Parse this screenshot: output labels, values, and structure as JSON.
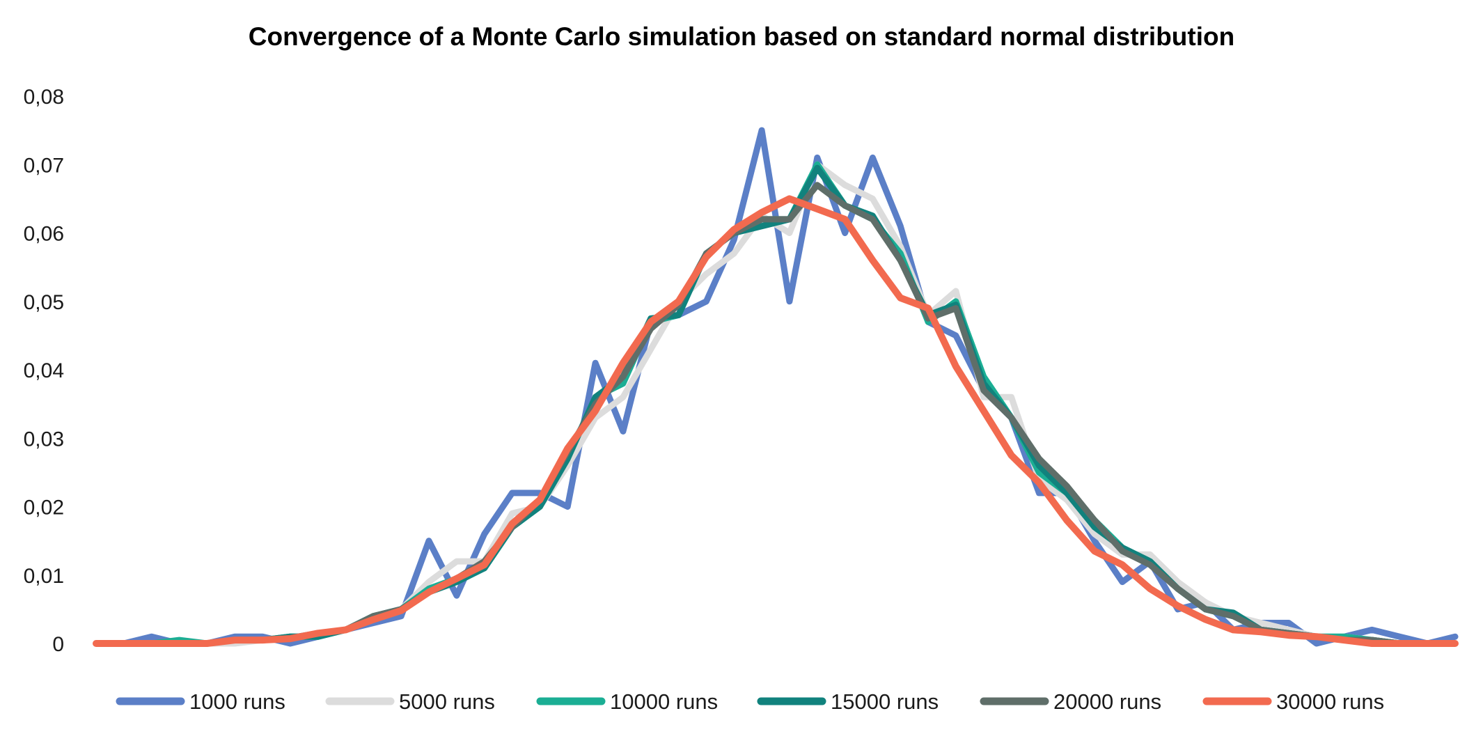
{
  "chart_data": {
    "type": "line",
    "title": "Convergence of a Monte Carlo simulation based on standard normal distribution",
    "xlabel": "",
    "ylabel": "",
    "ylim": [
      0,
      0.08
    ],
    "y_ticks": [
      "0",
      "0,01",
      "0,02",
      "0,03",
      "0,04",
      "0,05",
      "0,06",
      "0,07",
      "0,08"
    ],
    "grid": false,
    "legend_position": "bottom",
    "x": [
      1,
      2,
      3,
      4,
      5,
      6,
      7,
      8,
      9,
      10,
      11,
      12,
      13,
      14,
      15,
      16,
      17,
      18,
      19,
      20,
      21,
      22,
      23,
      24,
      25,
      26,
      27,
      28,
      29,
      30,
      31,
      32,
      33,
      34,
      35,
      36,
      37,
      38,
      39,
      40,
      41,
      42,
      43,
      44,
      45,
      46,
      47,
      48,
      49,
      50
    ],
    "series": [
      {
        "name": "1000 runs",
        "color": "#5B7FC7",
        "values": [
          0,
          0,
          0.001,
          0,
          0,
          0.001,
          0.001,
          0,
          0.001,
          0.002,
          0.003,
          0.004,
          0.015,
          0.007,
          0.016,
          0.022,
          0.022,
          0.02,
          0.041,
          0.031,
          0.047,
          0.048,
          0.05,
          0.059,
          0.075,
          0.05,
          0.071,
          0.06,
          0.071,
          0.061,
          0.047,
          0.045,
          0.037,
          0.033,
          0.022,
          0.022,
          0.015,
          0.009,
          0.012,
          0.005,
          0.006,
          0.002,
          0.003,
          0.003,
          0,
          0.001,
          0.002,
          0.001,
          0,
          0.001
        ]
      },
      {
        "name": "5000 runs",
        "color": "#DCDCDC",
        "values": [
          0,
          0,
          0,
          0,
          0,
          0,
          0.0005,
          0.001,
          0.001,
          0.002,
          0.004,
          0.005,
          0.009,
          0.012,
          0.012,
          0.019,
          0.02,
          0.026,
          0.033,
          0.036,
          0.043,
          0.05,
          0.054,
          0.057,
          0.0625,
          0.06,
          0.07,
          0.067,
          0.065,
          0.058,
          0.048,
          0.0515,
          0.036,
          0.036,
          0.024,
          0.021,
          0.016,
          0.013,
          0.013,
          0.009,
          0.006,
          0.004,
          0.003,
          0.002,
          0.001,
          0.001,
          0.0005,
          0,
          0,
          0
        ]
      },
      {
        "name": "10000 runs",
        "color": "#1BAE94",
        "values": [
          0,
          0,
          0,
          0.0005,
          0,
          0.0005,
          0.0005,
          0.001,
          0.001,
          0.002,
          0.004,
          0.005,
          0.008,
          0.0095,
          0.011,
          0.017,
          0.02,
          0.027,
          0.036,
          0.038,
          0.047,
          0.048,
          0.057,
          0.06,
          0.062,
          0.062,
          0.07,
          0.064,
          0.062,
          0.057,
          0.047,
          0.05,
          0.039,
          0.033,
          0.025,
          0.022,
          0.018,
          0.014,
          0.012,
          0.008,
          0.005,
          0.004,
          0.002,
          0.0015,
          0.001,
          0.001,
          0.0005,
          0,
          0,
          0
        ]
      },
      {
        "name": "15000 runs",
        "color": "#11827D",
        "values": [
          0,
          0,
          0,
          0,
          0,
          0.0005,
          0.0005,
          0.001,
          0.001,
          0.002,
          0.004,
          0.005,
          0.0075,
          0.009,
          0.011,
          0.017,
          0.02,
          0.027,
          0.036,
          0.039,
          0.0475,
          0.048,
          0.057,
          0.06,
          0.061,
          0.062,
          0.0695,
          0.064,
          0.0625,
          0.056,
          0.048,
          0.0495,
          0.038,
          0.033,
          0.026,
          0.022,
          0.017,
          0.014,
          0.012,
          0.008,
          0.005,
          0.0045,
          0.002,
          0.0015,
          0.001,
          0.0005,
          0.0005,
          0,
          0,
          0
        ]
      },
      {
        "name": "20000 runs",
        "color": "#5F6E69",
        "values": [
          0,
          0,
          0,
          0,
          0,
          0.0005,
          0.0005,
          0.0008,
          0.0015,
          0.002,
          0.004,
          0.005,
          0.0075,
          0.0095,
          0.012,
          0.017,
          0.021,
          0.028,
          0.035,
          0.039,
          0.046,
          0.0495,
          0.057,
          0.06,
          0.062,
          0.062,
          0.067,
          0.064,
          0.062,
          0.056,
          0.0475,
          0.049,
          0.037,
          0.033,
          0.027,
          0.023,
          0.018,
          0.0135,
          0.0115,
          0.008,
          0.005,
          0.004,
          0.002,
          0.0015,
          0.001,
          0.0005,
          0.0005,
          0,
          0,
          0
        ]
      },
      {
        "name": "30000 runs",
        "color": "#F26A4F",
        "values": [
          0,
          0,
          0,
          0,
          0,
          0.0005,
          0.0005,
          0.0007,
          0.0015,
          0.002,
          0.0035,
          0.0048,
          0.0075,
          0.0095,
          0.0115,
          0.0175,
          0.021,
          0.0285,
          0.034,
          0.041,
          0.047,
          0.05,
          0.0565,
          0.0605,
          0.063,
          0.065,
          0.0635,
          0.062,
          0.056,
          0.0505,
          0.049,
          0.0405,
          0.034,
          0.0275,
          0.0235,
          0.018,
          0.0135,
          0.0115,
          0.008,
          0.0055,
          0.0035,
          0.002,
          0.0017,
          0.0012,
          0.001,
          0.0005,
          0,
          0,
          0,
          0
        ]
      }
    ]
  }
}
